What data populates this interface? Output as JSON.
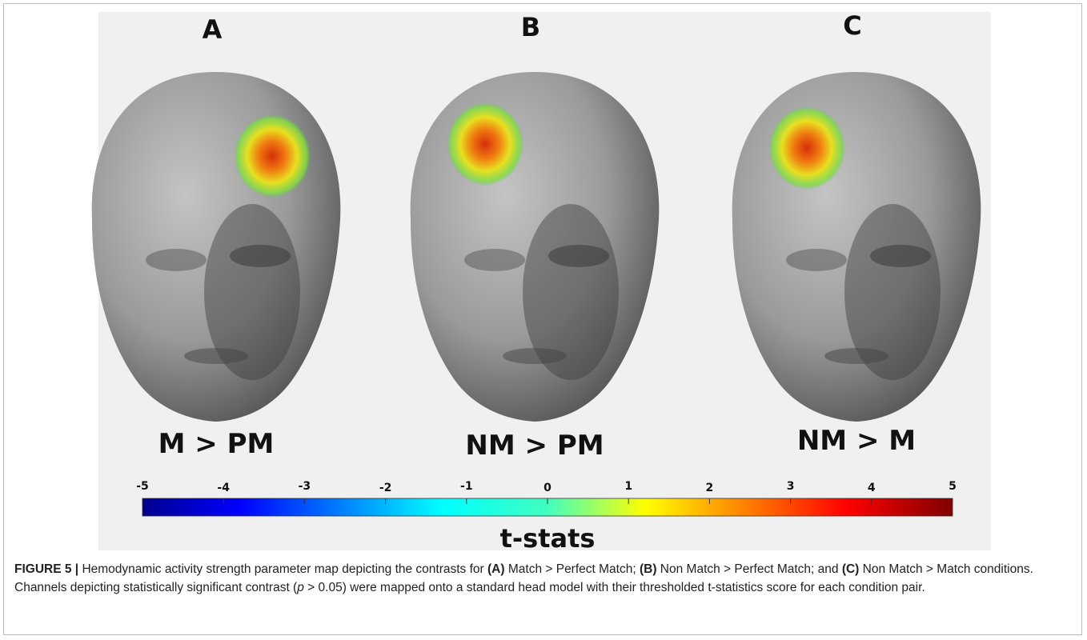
{
  "panels": [
    {
      "label": "A",
      "condition": "M > PM"
    },
    {
      "label": "B",
      "condition": "NM > PM"
    },
    {
      "label": "C",
      "condition": "NM > M"
    }
  ],
  "colorbar": {
    "lim": [
      -5,
      5
    ],
    "ticks": [
      -5,
      -4,
      -3,
      -2,
      -1,
      0,
      1,
      2,
      3,
      4,
      5
    ],
    "label": "t-stats"
  },
  "caption": {
    "runs": [
      {
        "text": "FIGURE 5 |",
        "style": "bold"
      },
      {
        "text": " Hemodynamic activity strength parameter map depicting the contrasts for ",
        "style": "normal"
      },
      {
        "text": "(A)",
        "style": "bold"
      },
      {
        "text": " Match > Perfect Match; ",
        "style": "normal"
      },
      {
        "text": "(B)",
        "style": "bold"
      },
      {
        "text": " Non Match > Perfect Match; and ",
        "style": "normal"
      },
      {
        "text": "(C)",
        "style": "bold"
      },
      {
        "text": " Non Match > Match conditions. Channels depicting statistically significant contrast (",
        "style": "normal"
      },
      {
        "text": "p",
        "style": "italic"
      },
      {
        "text": " > 0.05) were mapped onto a standard head model with their thresholded t-statistics score for each condition pair.",
        "style": "normal"
      }
    ]
  }
}
